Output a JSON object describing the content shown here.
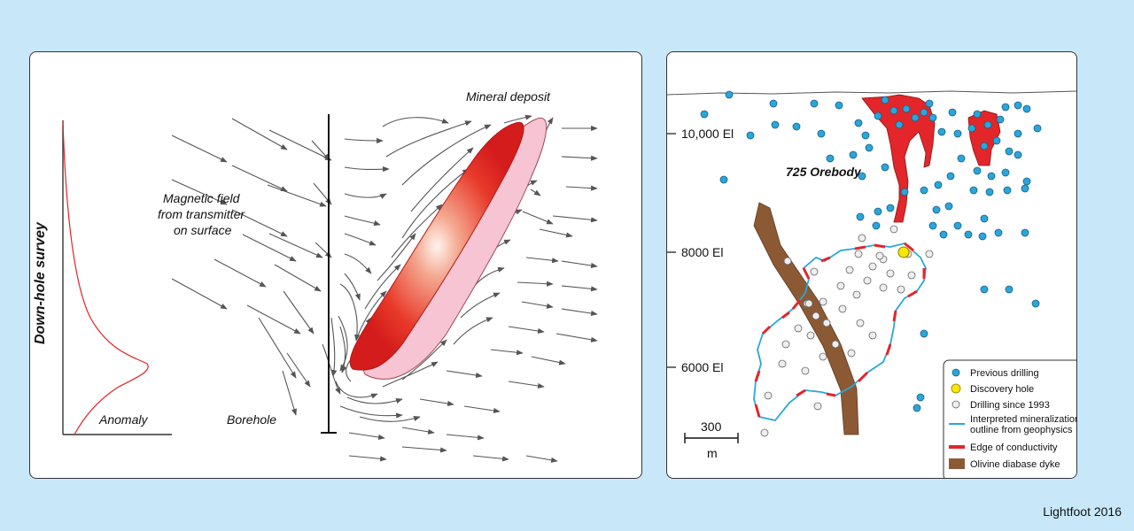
{
  "left": {
    "survey_label": "Down-hole survey",
    "anomaly_label": "Anomaly",
    "borehole_label": "Borehole",
    "field_label": [
      "Magnetic field",
      "from transmitter",
      "on surface"
    ],
    "deposit_label": "Mineral deposit"
  },
  "right": {
    "elevations": [
      "10,000 El",
      "8000 El",
      "6000 El"
    ],
    "orebody_label": "725 Orebody",
    "scale_value": "300",
    "scale_unit": "m",
    "legend": {
      "previous": "Previous drilling",
      "discovery": "Discovery hole",
      "since1993": "Drilling since 1993",
      "outline_1": "Interpreted mineralization",
      "outline_2": "outline from geophysics",
      "conductivity": "Edge of conductivity",
      "dyke": "Olivine diabase dyke"
    }
  },
  "credit": "Lightfoot 2016",
  "colors": {
    "background": "#c8e8fa",
    "previous_drilling": "#29a6dc",
    "discovery_hole": "#ffe600",
    "orebody_red": "#e3262a",
    "dyke_brown": "#8b5a35",
    "outline_blue": "#29a6dc",
    "conductivity_red": "#e3262a",
    "anomaly_curve": "#e32222"
  }
}
